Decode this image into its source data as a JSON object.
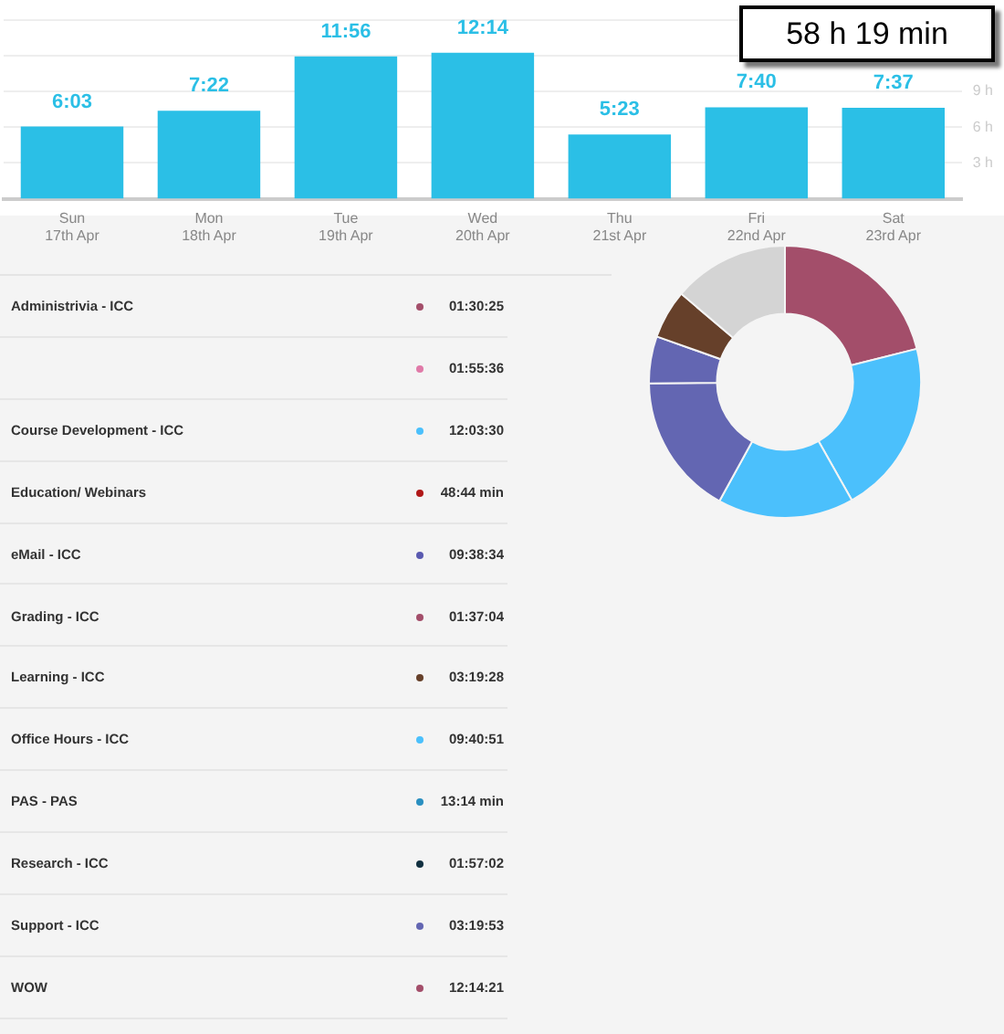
{
  "chart_data": [
    {
      "type": "bar",
      "categories": [
        "Sun 17th Apr",
        "Mon 18th Apr",
        "Tue 19th Apr",
        "Wed 20th Apr",
        "Thu 21st Apr",
        "Fri 22nd Apr",
        "Sat 23rd Apr"
      ],
      "values": [
        6.05,
        7.367,
        11.933,
        12.233,
        5.383,
        7.667,
        7.617
      ],
      "value_labels": [
        "6:03",
        "7:22",
        "11:56",
        "12:14",
        "5:23",
        "7:40",
        "7:37"
      ],
      "color": "#2bbfe6",
      "ylim": [
        0,
        15
      ],
      "yticks": [
        {
          "value": 3,
          "label": "3 h"
        },
        {
          "value": 6,
          "label": "6 h"
        },
        {
          "value": 9,
          "label": "9 h"
        },
        {
          "value": 12,
          "label": null
        },
        {
          "value": 15,
          "label": null
        }
      ],
      "grid": "y",
      "legend": false,
      "annotations": [
        "58 h 19 min"
      ]
    },
    {
      "type": "other",
      "categories": [
        "Administrivia - ICC",
        null,
        "Course Development - ICC",
        "Education/ Webinars",
        "eMail - ICC",
        "Grading - ICC",
        "Learning - ICC",
        "Office Hours - ICC",
        "PAS - PAS",
        "Research - ICC",
        "Support - ICC",
        "WOW"
      ],
      "value_labels": [
        "01:30:25",
        "01:55:36",
        "12:03:30",
        "48:44 min",
        "09:38:34",
        "01:37:04",
        "03:19:28",
        "09:40:51",
        "13:14 min",
        "01:57:02",
        "03:19:53",
        "12:14:21"
      ],
      "colors": [
        "#a34e6a",
        "#e07aa8",
        "#4bc0fc",
        "#b01818",
        "#5a5ab0",
        "#a34e6a",
        "#66402a",
        "#4bc0fc",
        "#2a8fc0",
        "#123040",
        "#6366b2",
        "#a34e6a"
      ]
    },
    {
      "type": "donut",
      "categories": [
        null,
        null,
        null,
        null,
        null,
        null,
        null
      ],
      "values": [
        21.1,
        20.7,
        16.2,
        16.8,
        5.6,
        5.8,
        13.8
      ],
      "colors": [
        "#a34e6a",
        "#4bc0fc",
        "#4bc0fc",
        "#6366b2",
        "#6366b2",
        "#66402a",
        "#d4d4d4"
      ],
      "legend": false
    }
  ]
}
